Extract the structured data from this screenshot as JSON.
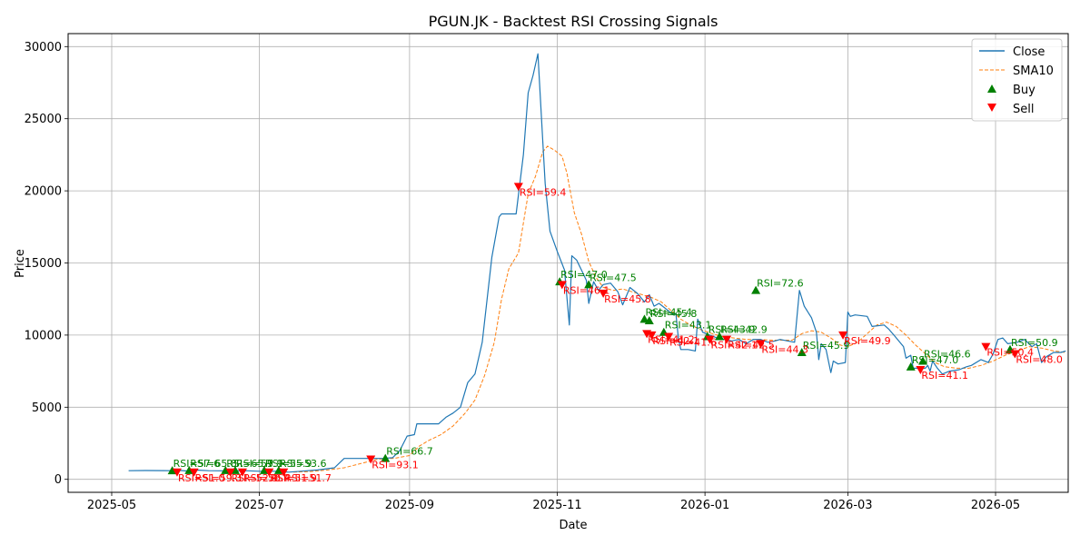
{
  "chart_data": {
    "type": "line",
    "title": "PGUN.JK - Backtest RSI Crossing Signals",
    "xlabel": "Date",
    "ylabel": "Price",
    "xlim": [
      "2025-04-13",
      "2026-05-31"
    ],
    "ylim": [
      -900,
      30900
    ],
    "x_ticks": [
      "2025-05-01",
      "2025-07-01",
      "2025-09-01",
      "2025-11-01",
      "2026-01-01",
      "2026-03-01",
      "2026-05-01"
    ],
    "x_tick_labels": [
      "2025-05",
      "2025-07",
      "2025-09",
      "2025-11",
      "2026-01",
      "2026-03",
      "2026-05"
    ],
    "y_ticks": [
      0,
      5000,
      10000,
      15000,
      20000,
      25000,
      30000
    ],
    "y_tick_labels": [
      "0",
      "5000",
      "10000",
      "15000",
      "20000",
      "25000",
      "30000"
    ],
    "grid": true,
    "legend": {
      "placement": "top-right",
      "entries": [
        "Close",
        "SMA10",
        "Buy",
        "Sell"
      ]
    },
    "colors": {
      "close": "#1f77b4",
      "sma": "#ff7f0e",
      "buy": "#008000",
      "sell": "#ff0000"
    },
    "series": [
      {
        "name": "Close",
        "points": [
          [
            "2025-05-08",
            600
          ],
          [
            "2025-05-15",
            610
          ],
          [
            "2025-05-22",
            605
          ],
          [
            "2025-05-26",
            600
          ],
          [
            "2025-05-29",
            620
          ],
          [
            "2025-06-01",
            580
          ],
          [
            "2025-06-05",
            640
          ],
          [
            "2025-06-10",
            600
          ],
          [
            "2025-06-15",
            590
          ],
          [
            "2025-06-20",
            580
          ],
          [
            "2025-06-25",
            600
          ],
          [
            "2025-07-01",
            560
          ],
          [
            "2025-07-08",
            560
          ],
          [
            "2025-07-13",
            500
          ],
          [
            "2025-07-18",
            560
          ],
          [
            "2025-07-25",
            650
          ],
          [
            "2025-08-01",
            800
          ],
          [
            "2025-08-05",
            1450
          ],
          [
            "2025-08-12",
            1450
          ],
          [
            "2025-08-17",
            1450
          ],
          [
            "2025-08-21",
            1450
          ],
          [
            "2025-08-25",
            1500
          ],
          [
            "2025-08-28",
            2000
          ],
          [
            "2025-08-31",
            3000
          ],
          [
            "2025-09-03",
            3100
          ],
          [
            "2025-09-04",
            3850
          ],
          [
            "2025-09-10",
            3850
          ],
          [
            "2025-09-13",
            3850
          ],
          [
            "2025-09-16",
            4300
          ],
          [
            "2025-09-19",
            4600
          ],
          [
            "2025-09-22",
            5000
          ],
          [
            "2025-09-25",
            6700
          ],
          [
            "2025-09-28",
            7300
          ],
          [
            "2025-10-01",
            9500
          ],
          [
            "2025-10-05",
            15400
          ],
          [
            "2025-10-08",
            18200
          ],
          [
            "2025-10-09",
            18400
          ],
          [
            "2025-10-11",
            18400
          ],
          [
            "2025-10-15",
            18400
          ],
          [
            "2025-10-18",
            22500
          ],
          [
            "2025-10-20",
            26800
          ],
          [
            "2025-10-22",
            28000
          ],
          [
            "2025-10-24",
            29500
          ],
          [
            "2025-10-26",
            23500
          ],
          [
            "2025-10-27",
            20500
          ],
          [
            "2025-10-29",
            17200
          ],
          [
            "2025-11-01",
            15800
          ],
          [
            "2025-11-04",
            14500
          ],
          [
            "2025-11-06",
            10700
          ],
          [
            "2025-11-07",
            15500
          ],
          [
            "2025-11-09",
            15200
          ],
          [
            "2025-11-11",
            14500
          ],
          [
            "2025-11-13",
            13800
          ],
          [
            "2025-11-14",
            12200
          ],
          [
            "2025-11-16",
            13700
          ],
          [
            "2025-11-18",
            13100
          ],
          [
            "2025-11-20",
            13500
          ],
          [
            "2025-11-23",
            13600
          ],
          [
            "2025-11-26",
            13000
          ],
          [
            "2025-11-28",
            12100
          ],
          [
            "2025-12-01",
            13300
          ],
          [
            "2025-12-04",
            12900
          ],
          [
            "2025-12-07",
            12300
          ],
          [
            "2025-12-09",
            12800
          ],
          [
            "2025-12-11",
            12000
          ],
          [
            "2025-12-13",
            12200
          ],
          [
            "2025-12-16",
            11800
          ],
          [
            "2025-12-19",
            11400
          ],
          [
            "2025-12-20",
            11500
          ],
          [
            "2025-12-21",
            9800
          ],
          [
            "2025-12-22",
            9000
          ],
          [
            "2025-12-25",
            9000
          ],
          [
            "2025-12-28",
            8900
          ],
          [
            "2025-12-29",
            11100
          ],
          [
            "2025-12-31",
            10200
          ],
          [
            "2026-01-03",
            10000
          ],
          [
            "2026-01-06",
            9800
          ],
          [
            "2026-01-09",
            9700
          ],
          [
            "2026-01-12",
            9600
          ],
          [
            "2026-01-15",
            9700
          ],
          [
            "2026-01-18",
            9400
          ],
          [
            "2026-01-21",
            9700
          ],
          [
            "2026-01-24",
            9700
          ],
          [
            "2026-01-27",
            9500
          ],
          [
            "2026-01-30",
            9600
          ],
          [
            "2026-02-01",
            9700
          ],
          [
            "2026-02-04",
            9600
          ],
          [
            "2026-02-07",
            9500
          ],
          [
            "2026-02-09",
            13100
          ],
          [
            "2026-02-11",
            12000
          ],
          [
            "2026-02-14",
            11200
          ],
          [
            "2026-02-16",
            10200
          ],
          [
            "2026-02-17",
            8300
          ],
          [
            "2026-02-18",
            9400
          ],
          [
            "2026-02-20",
            9000
          ],
          [
            "2026-02-22",
            7400
          ],
          [
            "2026-02-23",
            8200
          ],
          [
            "2026-02-25",
            8000
          ],
          [
            "2026-02-28",
            8100
          ],
          [
            "2026-03-01",
            11600
          ],
          [
            "2026-03-02",
            11300
          ],
          [
            "2026-03-04",
            11400
          ],
          [
            "2026-03-09",
            11300
          ],
          [
            "2026-03-11",
            10600
          ],
          [
            "2026-03-16",
            10700
          ],
          [
            "2026-03-18",
            10400
          ],
          [
            "2026-03-20",
            10000
          ],
          [
            "2026-03-22",
            9600
          ],
          [
            "2026-03-24",
            9200
          ],
          [
            "2026-03-25",
            8400
          ],
          [
            "2026-03-27",
            8600
          ],
          [
            "2026-03-28",
            7700
          ],
          [
            "2026-03-31",
            7700
          ],
          [
            "2026-04-02",
            7700
          ],
          [
            "2026-04-03",
            7900
          ],
          [
            "2026-04-04",
            7500
          ],
          [
            "2026-04-05",
            8200
          ],
          [
            "2026-04-07",
            7700
          ],
          [
            "2026-04-09",
            7300
          ],
          [
            "2026-04-12",
            7500
          ],
          [
            "2026-04-16",
            7600
          ],
          [
            "2026-04-19",
            7800
          ],
          [
            "2026-04-21",
            7900
          ],
          [
            "2026-04-25",
            8300
          ],
          [
            "2026-04-28",
            8100
          ],
          [
            "2026-04-30",
            8700
          ],
          [
            "2026-05-02",
            9700
          ],
          [
            "2026-05-04",
            9800
          ],
          [
            "2026-05-06",
            9400
          ],
          [
            "2026-05-10",
            9500
          ],
          [
            "2026-05-13",
            9700
          ],
          [
            "2026-05-16",
            9200
          ],
          [
            "2026-05-18",
            9400
          ],
          [
            "2026-05-20",
            8100
          ],
          [
            "2026-05-22",
            8500
          ],
          [
            "2026-05-25",
            8800
          ],
          [
            "2026-05-28",
            8800
          ],
          [
            "2026-05-30",
            8900
          ]
        ]
      },
      {
        "name": "SMA10",
        "points": [
          [
            "2025-07-15",
            500
          ],
          [
            "2025-07-22",
            540
          ],
          [
            "2025-07-29",
            640
          ],
          [
            "2025-08-05",
            800
          ],
          [
            "2025-08-12",
            1100
          ],
          [
            "2025-08-19",
            1400
          ],
          [
            "2025-08-26",
            1460
          ],
          [
            "2025-09-01",
            1650
          ],
          [
            "2025-09-05",
            2300
          ],
          [
            "2025-09-09",
            2700
          ],
          [
            "2025-09-14",
            3100
          ],
          [
            "2025-09-19",
            3700
          ],
          [
            "2025-09-24",
            4600
          ],
          [
            "2025-09-28",
            5500
          ],
          [
            "2025-10-02",
            7200
          ],
          [
            "2025-10-06",
            9500
          ],
          [
            "2025-10-09",
            12500
          ],
          [
            "2025-10-12",
            14600
          ],
          [
            "2025-10-16",
            15700
          ],
          [
            "2025-10-20",
            19800
          ],
          [
            "2025-10-23",
            21000
          ],
          [
            "2025-10-26",
            22700
          ],
          [
            "2025-10-28",
            23100
          ],
          [
            "2025-10-31",
            22800
          ],
          [
            "2025-11-03",
            22400
          ],
          [
            "2025-11-05",
            21200
          ],
          [
            "2025-11-08",
            18500
          ],
          [
            "2025-11-11",
            17000
          ],
          [
            "2025-11-14",
            15100
          ],
          [
            "2025-11-17",
            14000
          ],
          [
            "2025-11-20",
            13300
          ],
          [
            "2025-11-24",
            13100
          ],
          [
            "2025-11-28",
            13200
          ],
          [
            "2025-12-02",
            13000
          ],
          [
            "2025-12-06",
            12800
          ],
          [
            "2025-12-10",
            12600
          ],
          [
            "2025-12-14",
            12300
          ],
          [
            "2025-12-18",
            11700
          ],
          [
            "2025-12-22",
            11100
          ],
          [
            "2025-12-26",
            10700
          ],
          [
            "2025-12-30",
            10400
          ],
          [
            "2026-01-04",
            10100
          ],
          [
            "2026-01-08",
            9900
          ],
          [
            "2026-01-13",
            9800
          ],
          [
            "2026-01-18",
            9700
          ],
          [
            "2026-01-23",
            9700
          ],
          [
            "2026-01-28",
            9650
          ],
          [
            "2026-02-02",
            9650
          ],
          [
            "2026-02-06",
            9650
          ],
          [
            "2026-02-10",
            10100
          ],
          [
            "2026-02-14",
            10300
          ],
          [
            "2026-02-18",
            10200
          ],
          [
            "2026-02-22",
            9800
          ],
          [
            "2026-02-26",
            9300
          ],
          [
            "2026-03-01",
            9200
          ],
          [
            "2026-03-05",
            9500
          ],
          [
            "2026-03-09",
            10100
          ],
          [
            "2026-03-13",
            10700
          ],
          [
            "2026-03-17",
            10900
          ],
          [
            "2026-03-21",
            10600
          ],
          [
            "2026-03-25",
            10000
          ],
          [
            "2026-03-29",
            9300
          ],
          [
            "2026-04-02",
            8700
          ],
          [
            "2026-04-06",
            8100
          ],
          [
            "2026-04-10",
            7800
          ],
          [
            "2026-04-15",
            7700
          ],
          [
            "2026-04-20",
            7700
          ],
          [
            "2026-04-25",
            7900
          ],
          [
            "2026-04-30",
            8200
          ],
          [
            "2026-05-05",
            8600
          ],
          [
            "2026-05-10",
            8900
          ],
          [
            "2026-05-15",
            9200
          ],
          [
            "2026-05-20",
            9100
          ],
          [
            "2026-05-25",
            8900
          ],
          [
            "2026-05-30",
            8800
          ]
        ]
      }
    ],
    "buy_signals": [
      {
        "x": "2025-05-26",
        "y": 600,
        "label": "RSI=57.6"
      },
      {
        "x": "2025-06-02",
        "y": 620,
        "label": "RSI=65.8"
      },
      {
        "x": "2025-06-17",
        "y": 620,
        "label": "RSI=65.9"
      },
      {
        "x": "2025-06-21",
        "y": 620,
        "label": "RSI=57.9"
      },
      {
        "x": "2025-07-03",
        "y": 620,
        "label": "RSI=55.9"
      },
      {
        "x": "2025-07-09",
        "y": 620,
        "label": "RSI=53.6"
      },
      {
        "x": "2025-08-22",
        "y": 1450,
        "label": "RSI=66.7"
      },
      {
        "x": "2025-11-02",
        "y": 13700,
        "label": "RSI=47.0"
      },
      {
        "x": "2025-11-14",
        "y": 13500,
        "label": "RSI=47.5"
      },
      {
        "x": "2025-12-07",
        "y": 11100,
        "label": "RSI=45.4"
      },
      {
        "x": "2025-12-09",
        "y": 11000,
        "label": "RSI=45.8"
      },
      {
        "x": "2025-12-15",
        "y": 10200,
        "label": "RSI=43.1"
      },
      {
        "x": "2026-01-02",
        "y": 9900,
        "label": "RSI=43.9"
      },
      {
        "x": "2026-01-07",
        "y": 9900,
        "label": "RSI=42.9"
      },
      {
        "x": "2026-01-22",
        "y": 13100,
        "label": "RSI=72.6"
      },
      {
        "x": "2026-02-10",
        "y": 8800,
        "label": "RSI=45.9"
      },
      {
        "x": "2026-03-27",
        "y": 7800,
        "label": "RSI=47.0"
      },
      {
        "x": "2026-04-01",
        "y": 8200,
        "label": "RSI=46.6"
      },
      {
        "x": "2026-05-07",
        "y": 9000,
        "label": "RSI=50.9"
      }
    ],
    "sell_signals": [
      {
        "x": "2025-05-28",
        "y": 500,
        "label": "RSI=51.0"
      },
      {
        "x": "2025-06-04",
        "y": 500,
        "label": "RSI=59.3"
      },
      {
        "x": "2025-06-19",
        "y": 500,
        "label": "RSI=52.9"
      },
      {
        "x": "2025-06-24",
        "y": 500,
        "label": "RSI=50.4"
      },
      {
        "x": "2025-07-05",
        "y": 500,
        "label": "RSI=51.9"
      },
      {
        "x": "2025-07-11",
        "y": 500,
        "label": "RSI=51.7"
      },
      {
        "x": "2025-08-16",
        "y": 1400,
        "label": "RSI=93.1"
      },
      {
        "x": "2025-10-16",
        "y": 20300,
        "label": "RSI=59.4"
      },
      {
        "x": "2025-11-03",
        "y": 13500,
        "label": "RSI=46.1"
      },
      {
        "x": "2025-11-20",
        "y": 12900,
        "label": "RSI=45.8"
      },
      {
        "x": "2025-12-08",
        "y": 10100,
        "label": "RSI=41.2"
      },
      {
        "x": "2025-12-10",
        "y": 10000,
        "label": "RSI=42.1"
      },
      {
        "x": "2025-12-17",
        "y": 9900,
        "label": "RSI=41.6"
      },
      {
        "x": "2026-01-03",
        "y": 9700,
        "label": "RSI=42.1"
      },
      {
        "x": "2026-01-10",
        "y": 9700,
        "label": "RSI=42.5"
      },
      {
        "x": "2026-01-24",
        "y": 9400,
        "label": "RSI=44.3"
      },
      {
        "x": "2026-02-27",
        "y": 10000,
        "label": "RSI=49.9"
      },
      {
        "x": "2026-03-31",
        "y": 7600,
        "label": "RSI=41.1"
      },
      {
        "x": "2026-04-27",
        "y": 9200,
        "label": "RSI=50.4"
      },
      {
        "x": "2026-05-09",
        "y": 8700,
        "label": "RSI=48.0"
      }
    ]
  }
}
